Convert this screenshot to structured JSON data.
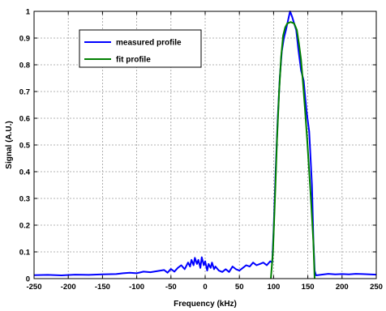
{
  "chart_data": {
    "type": "line",
    "title": "",
    "xlabel": "Frequency (kHz)",
    "ylabel": "Signal (A.U.)",
    "xlim": [
      -250,
      250
    ],
    "ylim": [
      0,
      1
    ],
    "grid": true,
    "legend_position": "top-left",
    "x_ticks": [
      "-250",
      "-200",
      "-150",
      "-100",
      "-50",
      "0",
      "50",
      "100",
      "150",
      "200",
      "250"
    ],
    "y_ticks": [
      "0",
      "0.1",
      "0.2",
      "0.3",
      "0.4",
      "0.5",
      "0.6",
      "0.7",
      "0.8",
      "0.9",
      "1"
    ],
    "x_tick_values": [
      -250,
      -200,
      -150,
      -100,
      -50,
      0,
      50,
      100,
      150,
      200,
      250
    ],
    "y_tick_values": [
      0,
      0.1,
      0.2,
      0.3,
      0.4,
      0.5,
      0.6,
      0.7,
      0.8,
      0.9,
      1
    ],
    "series": [
      {
        "name": "measured profile",
        "color": "#0000ff",
        "points": [
          [
            -250,
            0.013
          ],
          [
            -230,
            0.014
          ],
          [
            -210,
            0.012
          ],
          [
            -190,
            0.015
          ],
          [
            -170,
            0.014
          ],
          [
            -150,
            0.016
          ],
          [
            -130,
            0.017
          ],
          [
            -120,
            0.02
          ],
          [
            -110,
            0.022
          ],
          [
            -100,
            0.02
          ],
          [
            -90,
            0.026
          ],
          [
            -80,
            0.024
          ],
          [
            -70,
            0.028
          ],
          [
            -60,
            0.032
          ],
          [
            -55,
            0.022
          ],
          [
            -50,
            0.036
          ],
          [
            -45,
            0.026
          ],
          [
            -40,
            0.04
          ],
          [
            -35,
            0.05
          ],
          [
            -30,
            0.035
          ],
          [
            -25,
            0.06
          ],
          [
            -22,
            0.045
          ],
          [
            -20,
            0.07
          ],
          [
            -17,
            0.05
          ],
          [
            -15,
            0.078
          ],
          [
            -12,
            0.055
          ],
          [
            -10,
            0.07
          ],
          [
            -7,
            0.04
          ],
          [
            -5,
            0.08
          ],
          [
            -2,
            0.05
          ],
          [
            0,
            0.065
          ],
          [
            3,
            0.03
          ],
          [
            5,
            0.055
          ],
          [
            8,
            0.04
          ],
          [
            10,
            0.06
          ],
          [
            13,
            0.035
          ],
          [
            15,
            0.045
          ],
          [
            20,
            0.03
          ],
          [
            25,
            0.025
          ],
          [
            30,
            0.035
          ],
          [
            35,
            0.025
          ],
          [
            40,
            0.045
          ],
          [
            45,
            0.035
          ],
          [
            50,
            0.03
          ],
          [
            55,
            0.04
          ],
          [
            60,
            0.05
          ],
          [
            65,
            0.045
          ],
          [
            70,
            0.06
          ],
          [
            75,
            0.05
          ],
          [
            80,
            0.055
          ],
          [
            85,
            0.06
          ],
          [
            90,
            0.05
          ],
          [
            95,
            0.065
          ],
          [
            98,
            0.06
          ],
          [
            100,
            0.18
          ],
          [
            103,
            0.4
          ],
          [
            106,
            0.6
          ],
          [
            109,
            0.75
          ],
          [
            112,
            0.85
          ],
          [
            115,
            0.9
          ],
          [
            118,
            0.93
          ],
          [
            121,
            0.965
          ],
          [
            124,
            1.0
          ],
          [
            127,
            0.98
          ],
          [
            130,
            0.955
          ],
          [
            133,
            0.93
          ],
          [
            136,
            0.86
          ],
          [
            140,
            0.78
          ],
          [
            144,
            0.74
          ],
          [
            148,
            0.63
          ],
          [
            152,
            0.55
          ],
          [
            156,
            0.35
          ],
          [
            158,
            0.15
          ],
          [
            160,
            0.03
          ],
          [
            162,
            0.012
          ],
          [
            170,
            0.015
          ],
          [
            180,
            0.018
          ],
          [
            190,
            0.016
          ],
          [
            200,
            0.017
          ],
          [
            210,
            0.016
          ],
          [
            220,
            0.018
          ],
          [
            230,
            0.017
          ],
          [
            240,
            0.016
          ],
          [
            250,
            0.015
          ]
        ]
      },
      {
        "name": "fit profile",
        "color": "#008000",
        "points": [
          [
            96,
            0.0
          ],
          [
            99,
            0.1
          ],
          [
            102,
            0.3
          ],
          [
            105,
            0.52
          ],
          [
            108,
            0.7
          ],
          [
            111,
            0.83
          ],
          [
            114,
            0.91
          ],
          [
            117,
            0.94
          ],
          [
            120,
            0.955
          ],
          [
            125,
            0.96
          ],
          [
            130,
            0.955
          ],
          [
            134,
            0.93
          ],
          [
            137,
            0.88
          ],
          [
            140,
            0.82
          ],
          [
            143,
            0.73
          ],
          [
            146,
            0.63
          ],
          [
            149,
            0.52
          ],
          [
            152,
            0.4
          ],
          [
            155,
            0.28
          ],
          [
            158,
            0.14
          ],
          [
            160,
            0.0
          ]
        ]
      }
    ]
  }
}
